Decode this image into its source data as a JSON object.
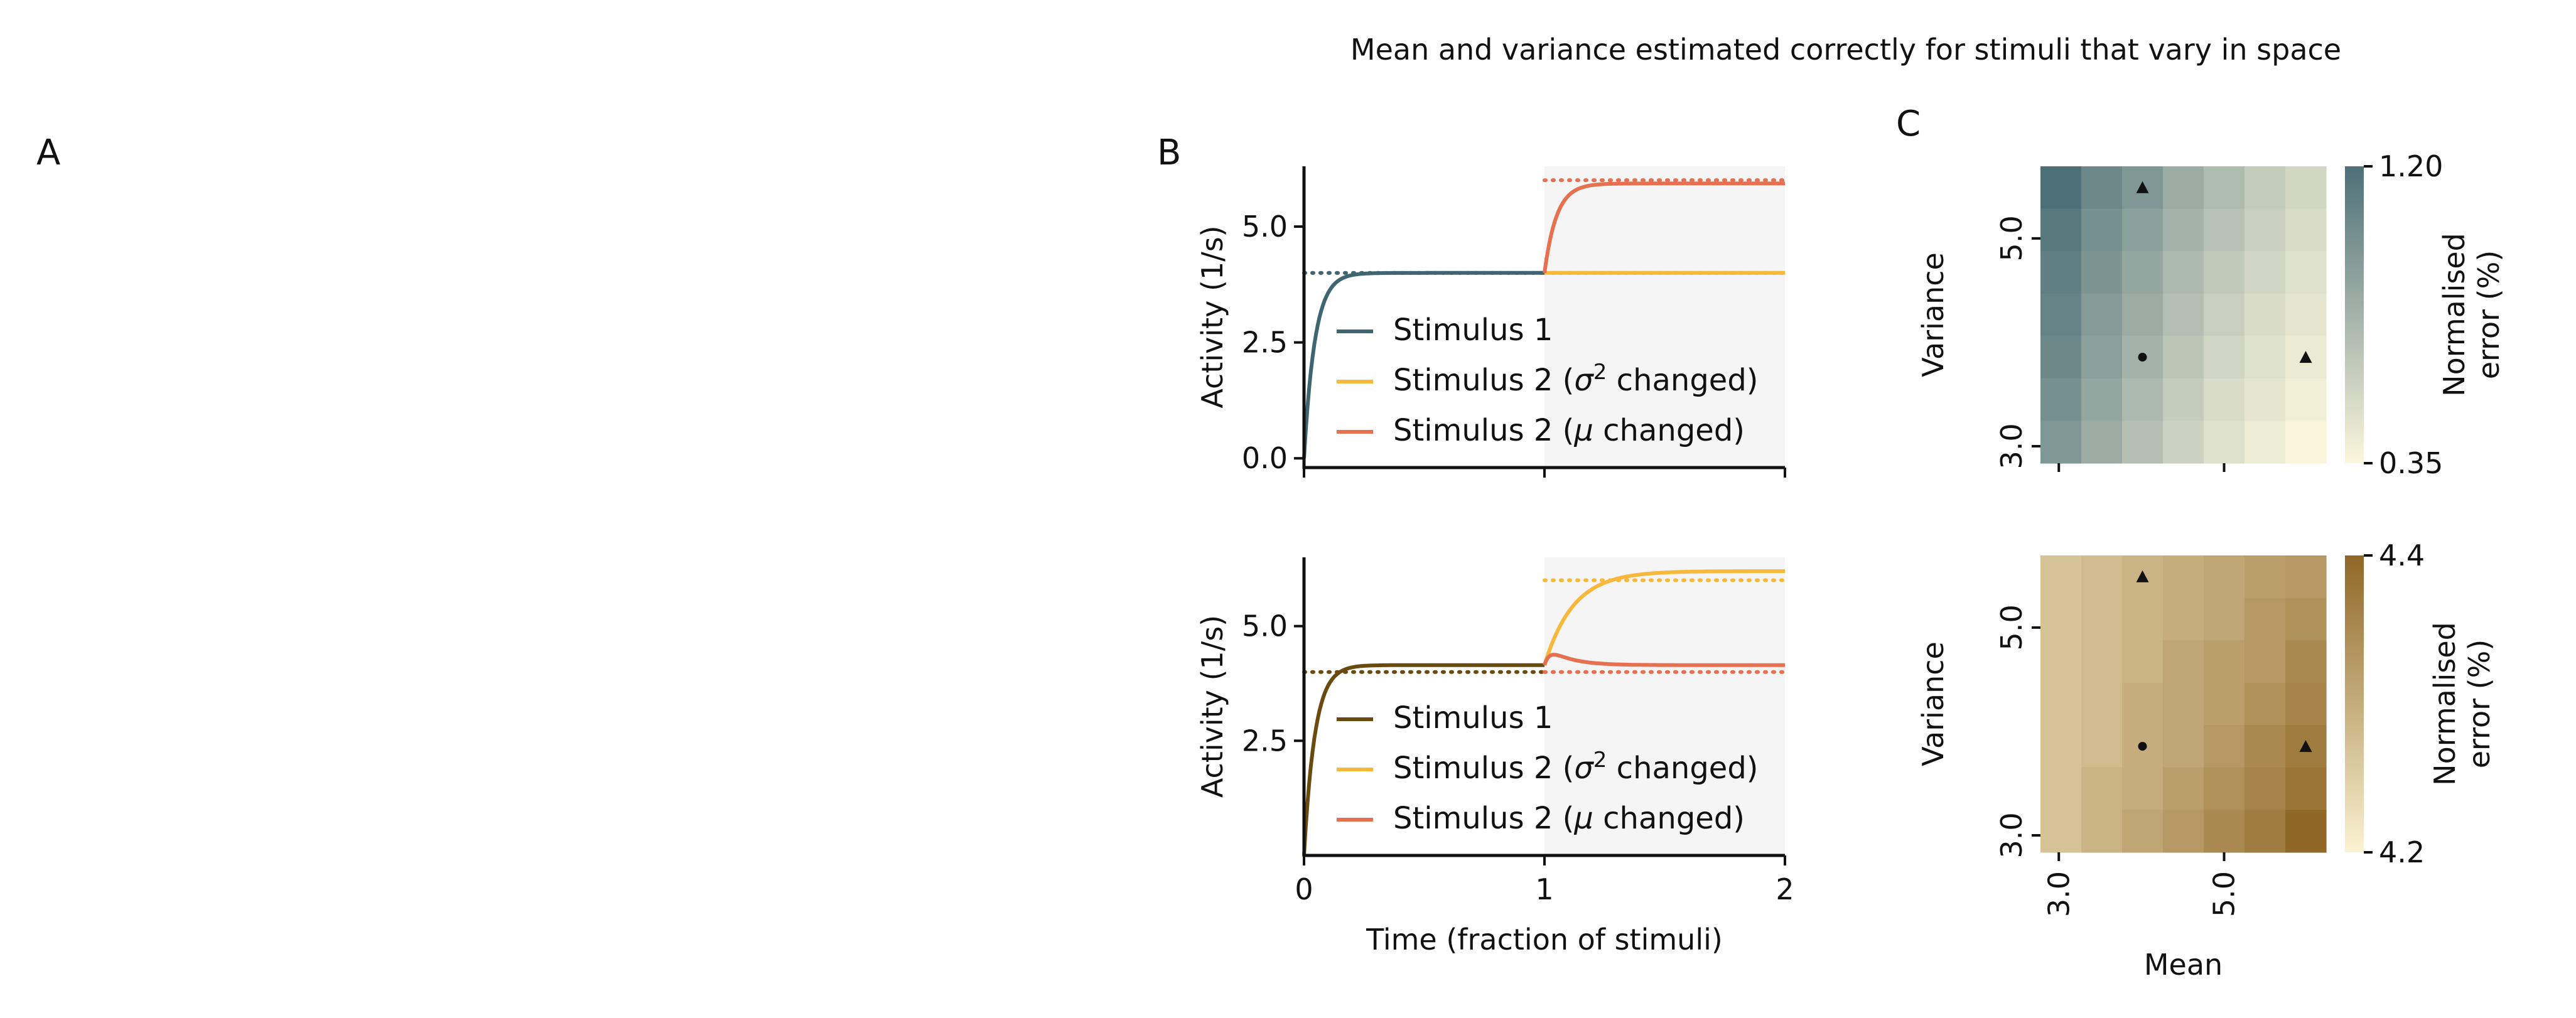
{
  "figure": {
    "title": "Mean and variance estimated correctly for stimuli that vary in space",
    "panel_labels": [
      "A",
      "B",
      "C"
    ]
  },
  "colors": {
    "top_stim1": "#3f6670",
    "bottom_stim1": "#6b4a10",
    "var_changed": "#f6b93b",
    "mu_changed": "#e6704f",
    "shade": "#f5f5f5",
    "heat_top_low": "#fbf7dc",
    "heat_top_high": "#4d7077",
    "heat_bottom_low": "#fbf3d3",
    "heat_bottom_high": "#8f6726"
  },
  "chart_data": [
    {
      "type": "line",
      "panel": "B-top",
      "xlabel": "",
      "ylabel": "Activity (1/s)",
      "xlim": [
        0,
        2
      ],
      "ylim": [
        -0.2,
        6.3
      ],
      "y_ticks": [
        0.0,
        2.5,
        5.0
      ],
      "y_tick_labels": [
        "0.0",
        "2.5",
        "5.0"
      ],
      "x_tick_labels": [
        "",
        "",
        ""
      ],
      "x_ticks": [
        0,
        1,
        2
      ],
      "shaded_x": [
        1,
        2
      ],
      "series": [
        {
          "name": "Stimulus 1",
          "color_key": "top_stim1",
          "x_start": 0,
          "x_end": 1,
          "y0": 0.0,
          "y_final": 4.0,
          "tau": 0.045,
          "target": 4.0,
          "target_x": [
            0,
            1
          ]
        },
        {
          "name": "Stimulus 2 ($\\sigma^2$ changed)",
          "legend_main": "Stimulus 2 (",
          "legend_sym": "σ",
          "legend_sup": "2",
          "legend_tail": " changed)",
          "color_key": "var_changed",
          "x_start": 1,
          "x_end": 2,
          "y0": 4.0,
          "y_final": 4.0,
          "tau": 0.05,
          "target": 4.0,
          "target_x": [
            1,
            2
          ]
        },
        {
          "name": "Stimulus 2 ($\\mu$ changed)",
          "legend_main": "Stimulus 2 (",
          "legend_sym": "μ",
          "legend_sup": "",
          "legend_tail": " changed)",
          "color_key": "mu_changed",
          "x_start": 1,
          "x_end": 2,
          "y0": 4.0,
          "y_final": 5.93,
          "tau": 0.05,
          "target": 6.0,
          "target_x": [
            1,
            2
          ]
        }
      ]
    },
    {
      "type": "line",
      "panel": "B-bottom",
      "xlabel": "Time (fraction of stimuli)",
      "ylabel": "Activity (1/s)",
      "xlim": [
        0,
        2
      ],
      "ylim": [
        0.0,
        6.5
      ],
      "y_ticks": [
        2.5,
        5.0
      ],
      "y_tick_labels": [
        "2.5",
        "5.0"
      ],
      "x_ticks": [
        0,
        1,
        2
      ],
      "x_tick_labels": [
        "0",
        "1",
        "2"
      ],
      "shaded_x": [
        1,
        2
      ],
      "series": [
        {
          "name": "Stimulus 1",
          "color_key": "bottom_stim1",
          "x_start": 0,
          "x_end": 1,
          "y0": 0.0,
          "y_final": 4.15,
          "tau": 0.045,
          "target": 4.0,
          "target_x": [
            0,
            1
          ]
        },
        {
          "name": "Stimulus 2 ($\\sigma^2$ changed)",
          "legend_main": "Stimulus 2 (",
          "legend_sym": "σ",
          "legend_sup": "2",
          "legend_tail": " changed)",
          "color_key": "var_changed",
          "x_start": 1,
          "x_end": 2,
          "y0": 4.15,
          "y_final": 6.2,
          "tau": 0.12,
          "target": 6.0,
          "target_x": [
            1,
            2
          ]
        },
        {
          "name": "Stimulus 2 ($\\mu$ changed)",
          "legend_main": "Stimulus 2 (",
          "legend_sym": "μ",
          "legend_sup": "",
          "legend_tail": " changed)",
          "color_key": "mu_changed",
          "x_start": 1,
          "x_end": 2,
          "y0": 4.15,
          "y_final": 4.15,
          "bump": 0.45,
          "tau": 0.12,
          "target": 4.0,
          "target_x": [
            1,
            2
          ]
        }
      ]
    },
    {
      "type": "heatmap",
      "panel": "C-top",
      "xlabel": "",
      "ylabel": "Variance",
      "x_tick_labels": [
        "",
        ""
      ],
      "y_tick_labels": [
        "5.0",
        "3.0"
      ],
      "colorbar_label_line1": "Normalised",
      "colorbar_label_line2": "error (%)",
      "colorbar_min_label": "0.35",
      "colorbar_max_label": "1.20",
      "vmin": 0.35,
      "vmax": 1.2,
      "rows_top_to_bottom": [
        [
          1.2,
          1.05,
          0.95,
          0.82,
          0.72,
          0.62,
          0.55
        ],
        [
          1.15,
          1.0,
          0.9,
          0.78,
          0.68,
          0.6,
          0.52
        ],
        [
          1.1,
          0.97,
          0.86,
          0.74,
          0.64,
          0.56,
          0.49
        ],
        [
          1.08,
          0.93,
          0.82,
          0.7,
          0.6,
          0.52,
          0.46
        ],
        [
          1.05,
          0.9,
          0.78,
          0.66,
          0.56,
          0.49,
          0.43
        ],
        [
          1.0,
          0.86,
          0.74,
          0.62,
          0.52,
          0.46,
          0.4
        ],
        [
          0.95,
          0.82,
          0.7,
          0.58,
          0.49,
          0.42,
          0.36
        ]
      ],
      "markers": [
        {
          "shape": "triangle",
          "col": 2,
          "row": 0
        },
        {
          "shape": "circle",
          "col": 2,
          "row": 4
        },
        {
          "shape": "triangle",
          "col": 6,
          "row": 4
        }
      ]
    },
    {
      "type": "heatmap",
      "panel": "C-bottom",
      "xlabel": "Mean",
      "ylabel": "Variance",
      "x_tick_labels": [
        "3.0",
        "5.0"
      ],
      "y_tick_labels": [
        "5.0",
        "3.0"
      ],
      "colorbar_label_line1": "Normalised",
      "colorbar_label_line2": "error (%)",
      "colorbar_min_label": "4.2",
      "colorbar_max_label": "4.4",
      "vmin": 4.2,
      "vmax": 4.4,
      "rows_top_to_bottom": [
        [
          4.27,
          4.28,
          4.29,
          4.3,
          4.31,
          4.32,
          4.33
        ],
        [
          4.27,
          4.28,
          4.29,
          4.3,
          4.31,
          4.33,
          4.34
        ],
        [
          4.27,
          4.28,
          4.29,
          4.31,
          4.32,
          4.33,
          4.35
        ],
        [
          4.27,
          4.28,
          4.3,
          4.31,
          4.32,
          4.34,
          4.36
        ],
        [
          4.27,
          4.28,
          4.3,
          4.31,
          4.33,
          4.35,
          4.37
        ],
        [
          4.27,
          4.29,
          4.3,
          4.32,
          4.34,
          4.36,
          4.38
        ],
        [
          4.27,
          4.29,
          4.31,
          4.33,
          4.35,
          4.37,
          4.4
        ]
      ],
      "markers": [
        {
          "shape": "triangle",
          "col": 2,
          "row": 0
        },
        {
          "shape": "circle",
          "col": 2,
          "row": 4
        },
        {
          "shape": "triangle",
          "col": 6,
          "row": 4
        }
      ]
    }
  ]
}
